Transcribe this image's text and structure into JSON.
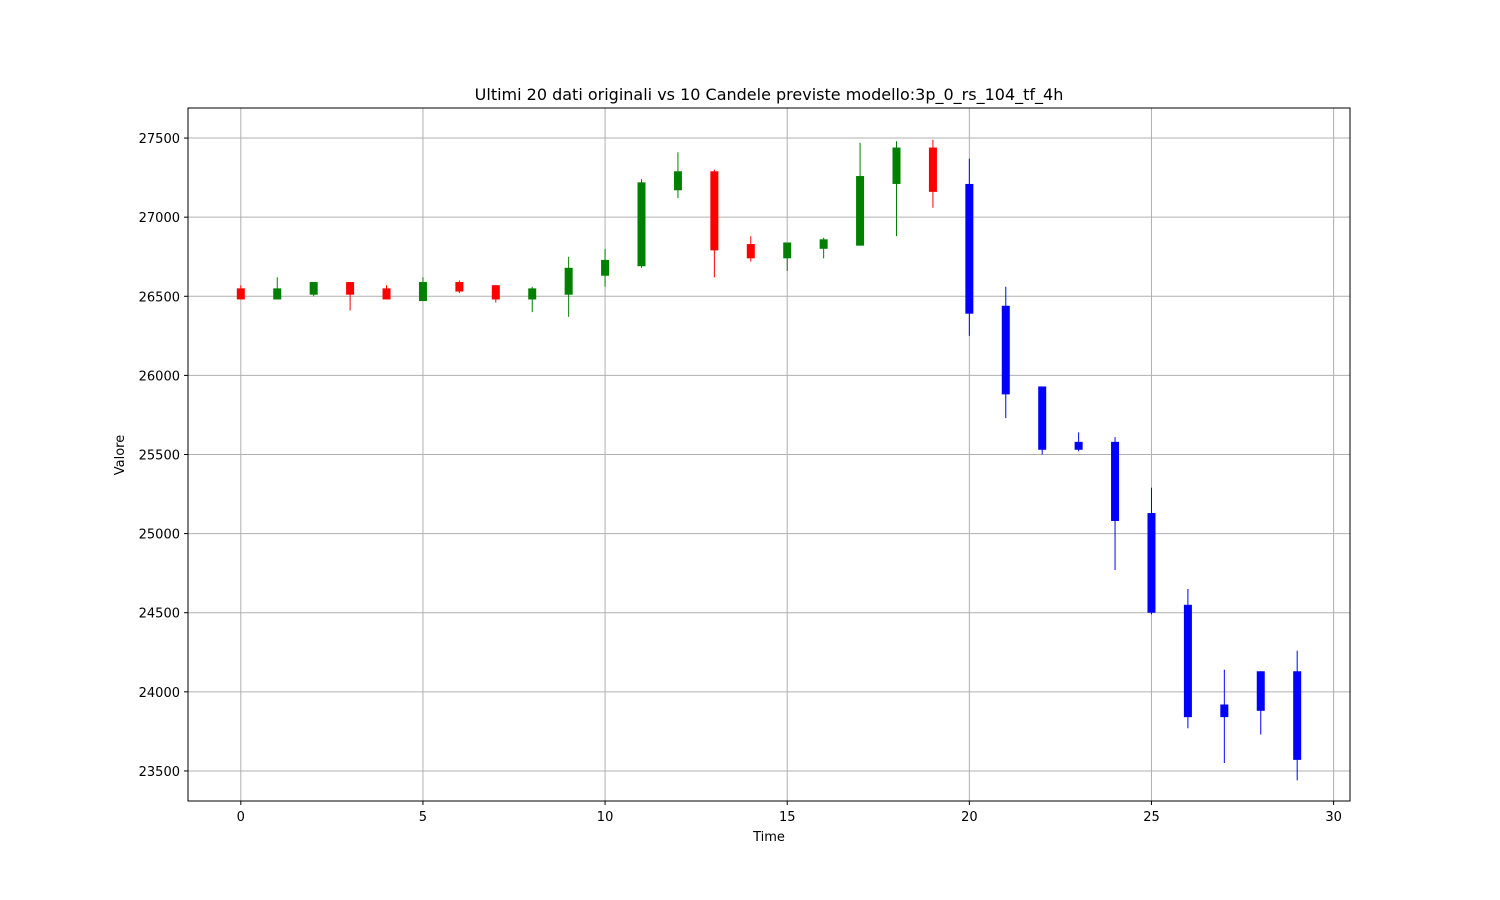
{
  "chart_data": {
    "type": "candlestick",
    "title": "Ultimi 20 dati originali vs 10 Candele previste modello:3p_0_rs_104_tf_4h",
    "xlabel": "Time",
    "ylabel": "Valore",
    "xlim": [
      -1.45,
      30.45
    ],
    "ylim": [
      23310,
      27690
    ],
    "xticks": [
      0,
      5,
      10,
      15,
      20,
      25,
      30
    ],
    "yticks": [
      23500,
      24000,
      24500,
      25000,
      25500,
      26000,
      26500,
      27000,
      27500
    ],
    "grid": true,
    "colors": {
      "up": "#008000",
      "down": "#ff0000",
      "forecast": "#0000ff",
      "grid": "#b0b0b0"
    },
    "series": [
      {
        "kind": "original",
        "candles": [
          {
            "x": 0,
            "open": 26550,
            "high": 26570,
            "low": 26480,
            "close": 26480
          },
          {
            "x": 1,
            "open": 26480,
            "high": 26620,
            "low": 26480,
            "close": 26550
          },
          {
            "x": 2,
            "open": 26510,
            "high": 26590,
            "low": 26500,
            "close": 26590
          },
          {
            "x": 3,
            "open": 26590,
            "high": 26590,
            "low": 26410,
            "close": 26510
          },
          {
            "x": 4,
            "open": 26550,
            "high": 26570,
            "low": 26480,
            "close": 26480
          },
          {
            "x": 5,
            "open": 26470,
            "high": 26620,
            "low": 26470,
            "close": 26590
          },
          {
            "x": 6,
            "open": 26590,
            "high": 26600,
            "low": 26520,
            "close": 26530
          },
          {
            "x": 7,
            "open": 26570,
            "high": 26570,
            "low": 26460,
            "close": 26480
          },
          {
            "x": 8,
            "open": 26480,
            "high": 26560,
            "low": 26400,
            "close": 26550
          },
          {
            "x": 9,
            "open": 26510,
            "high": 26750,
            "low": 26370,
            "close": 26680
          },
          {
            "x": 10,
            "open": 26630,
            "high": 26800,
            "low": 26560,
            "close": 26730
          },
          {
            "x": 11,
            "open": 26690,
            "high": 27240,
            "low": 26680,
            "close": 27220
          },
          {
            "x": 12,
            "open": 27170,
            "high": 27410,
            "low": 27120,
            "close": 27290
          },
          {
            "x": 13,
            "open": 27290,
            "high": 27300,
            "low": 26620,
            "close": 26790
          },
          {
            "x": 14,
            "open": 26830,
            "high": 26880,
            "low": 26720,
            "close": 26740
          },
          {
            "x": 15,
            "open": 26740,
            "high": 26840,
            "low": 26660,
            "close": 26840
          },
          {
            "x": 16,
            "open": 26800,
            "high": 26870,
            "low": 26740,
            "close": 26860
          },
          {
            "x": 17,
            "open": 26820,
            "high": 27470,
            "low": 26820,
            "close": 27260
          },
          {
            "x": 18,
            "open": 27210,
            "high": 27480,
            "low": 26880,
            "close": 27440
          },
          {
            "x": 19,
            "open": 27440,
            "high": 27490,
            "low": 27060,
            "close": 27160
          }
        ]
      },
      {
        "kind": "forecast",
        "candles": [
          {
            "x": 20,
            "open": 27210,
            "high": 27370,
            "low": 26250,
            "close": 26390
          },
          {
            "x": 21,
            "open": 26440,
            "high": 26560,
            "low": 25730,
            "close": 25880
          },
          {
            "x": 22,
            "open": 25930,
            "high": 25930,
            "low": 25500,
            "close": 25530
          },
          {
            "x": 23,
            "open": 25580,
            "high": 25640,
            "low": 25520,
            "close": 25530
          },
          {
            "x": 24,
            "open": 25580,
            "high": 25610,
            "low": 24770,
            "close": 25080
          },
          {
            "x": 25,
            "open": 25130,
            "high": 25290,
            "low": 24490,
            "close": 24500
          },
          {
            "x": 26,
            "open": 24550,
            "high": 24650,
            "low": 23770,
            "close": 23840
          },
          {
            "x": 27,
            "open": 23920,
            "high": 24140,
            "low": 23550,
            "close": 23840
          },
          {
            "x": 28,
            "open": 24130,
            "high": 24130,
            "low": 23730,
            "close": 23880
          },
          {
            "x": 29,
            "open": 24130,
            "high": 24260,
            "low": 23440,
            "close": 23570
          }
        ]
      }
    ]
  }
}
